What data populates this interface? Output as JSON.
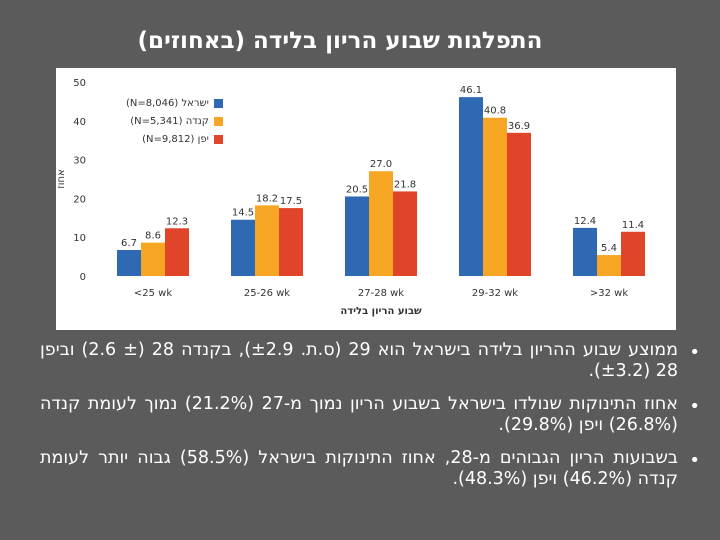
{
  "title": "התפלגות שבוע הריון בלידה (באחוזים)",
  "chart_data": {
    "type": "bar",
    "title": "התפלגות שבוע הריון בלידה (באחוזים)",
    "xlabel": "שבוע הריון בלידה",
    "ylabel": "אחוז",
    "ylim": [
      0,
      50
    ],
    "yticks": [
      0,
      10,
      20,
      30,
      40,
      50
    ],
    "grid": false,
    "legend_position": "top-left",
    "categories": [
      "<25 wk",
      "25-26 wk",
      "27-28 wk",
      "29-32 wk",
      ">32 wk"
    ],
    "series": [
      {
        "name": "ישראל (N=8,046)",
        "color": "#2f69b3",
        "values": [
          6.7,
          14.5,
          20.5,
          46.1,
          12.4
        ]
      },
      {
        "name": "קנדה (N=5,341)",
        "color": "#f6a623",
        "values": [
          8.6,
          18.2,
          27.0,
          40.8,
          5.4
        ]
      },
      {
        "name": "יפן (N=9,812)",
        "color": "#e0452a",
        "values": [
          12.3,
          17.5,
          21.8,
          36.9,
          11.4
        ]
      }
    ]
  },
  "bullets": [
    "ממוצע שבוע ההריון בלידה בישראל הוא 29 (ס.ת. ±2.9), בקנדה 28 (± 2.6) וביפן 28 (±3.2).",
    "אחוז התינוקות שנולדו בישראל בשבוע הריון נמוך מ-27 (21.2%) נמוך לעומת קנדה (26.8%) ויפן (29.8%).",
    "בשבועות הריון הגבוהים מ-28, אחוז התינוקות בישראל (58.5%) גבוה יותר לעומת קנדה (46.2%) ויפן (48.3%)."
  ]
}
